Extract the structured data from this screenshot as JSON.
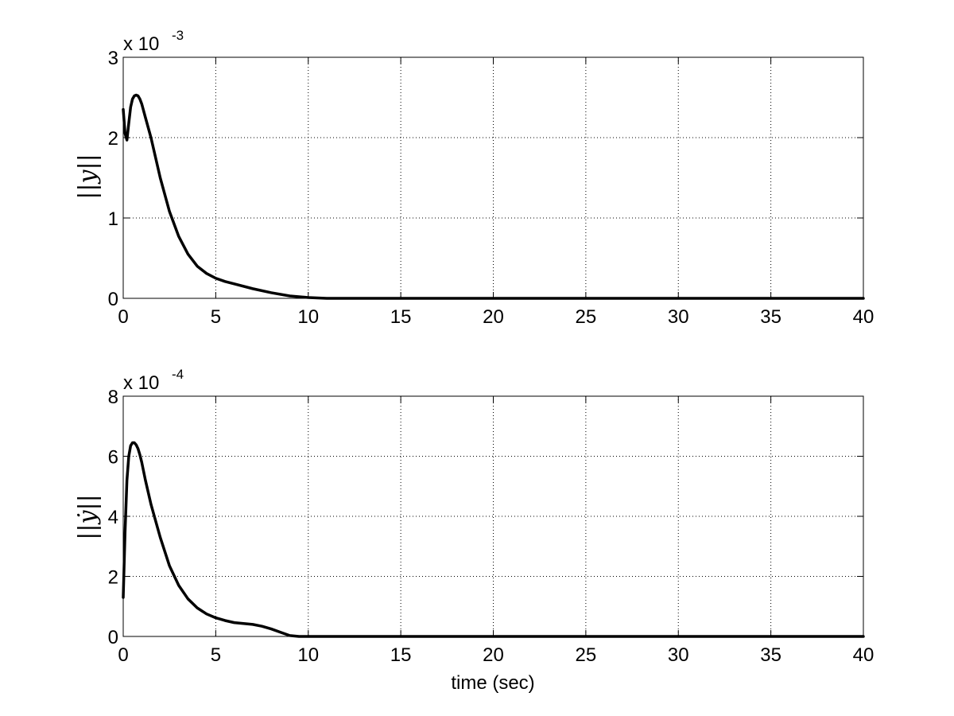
{
  "chart_data": [
    {
      "type": "line",
      "ylabel": "||y||",
      "xlabel": "",
      "exponent_base": "x 10",
      "exponent_power": "-3",
      "xlim": [
        0,
        40
      ],
      "ylim": [
        0,
        3
      ],
      "x_ticks": [
        0,
        5,
        10,
        15,
        20,
        25,
        30,
        35,
        40
      ],
      "y_ticks": [
        0,
        1,
        2,
        3
      ],
      "grid": true,
      "line_color": "#000000",
      "series": [
        {
          "x": [
            0,
            0.1,
            0.2,
            0.3,
            0.4,
            0.5,
            0.6,
            0.7,
            0.8,
            0.9,
            1.0,
            1.2,
            1.5,
            2.0,
            2.5,
            3.0,
            3.5,
            4.0,
            4.5,
            5.0,
            5.5,
            6.0,
            7.0,
            8.0,
            9.0,
            10.0,
            11.0,
            40.0
          ],
          "y": [
            2.35,
            2.05,
            1.97,
            2.18,
            2.38,
            2.48,
            2.52,
            2.53,
            2.52,
            2.48,
            2.42,
            2.25,
            2.0,
            1.5,
            1.08,
            0.77,
            0.55,
            0.4,
            0.31,
            0.25,
            0.21,
            0.18,
            0.12,
            0.07,
            0.03,
            0.01,
            0.0,
            0.0
          ]
        }
      ]
    },
    {
      "type": "line",
      "ylabel": "||ẏ||",
      "xlabel": "time (sec)",
      "exponent_base": "x 10",
      "exponent_power": "-4",
      "xlim": [
        0,
        40
      ],
      "ylim": [
        0,
        8
      ],
      "x_ticks": [
        0,
        5,
        10,
        15,
        20,
        25,
        30,
        35,
        40
      ],
      "y_ticks": [
        0,
        2,
        4,
        6,
        8
      ],
      "grid": true,
      "line_color": "#000000",
      "series": [
        {
          "x": [
            0,
            0.1,
            0.2,
            0.3,
            0.4,
            0.5,
            0.6,
            0.7,
            0.8,
            0.9,
            1.0,
            1.2,
            1.5,
            2.0,
            2.5,
            3.0,
            3.5,
            4.0,
            4.5,
            5.0,
            5.5,
            6.0,
            6.5,
            7.0,
            7.5,
            8.0,
            8.5,
            9.0,
            9.5,
            10.0,
            40.0
          ],
          "y": [
            1.3,
            3.5,
            5.2,
            6.0,
            6.35,
            6.45,
            6.45,
            6.38,
            6.25,
            6.05,
            5.8,
            5.2,
            4.4,
            3.3,
            2.35,
            1.7,
            1.25,
            0.95,
            0.75,
            0.62,
            0.53,
            0.46,
            0.43,
            0.4,
            0.34,
            0.25,
            0.14,
            0.03,
            0.0,
            0.0,
            0.0
          ]
        }
      ]
    }
  ]
}
